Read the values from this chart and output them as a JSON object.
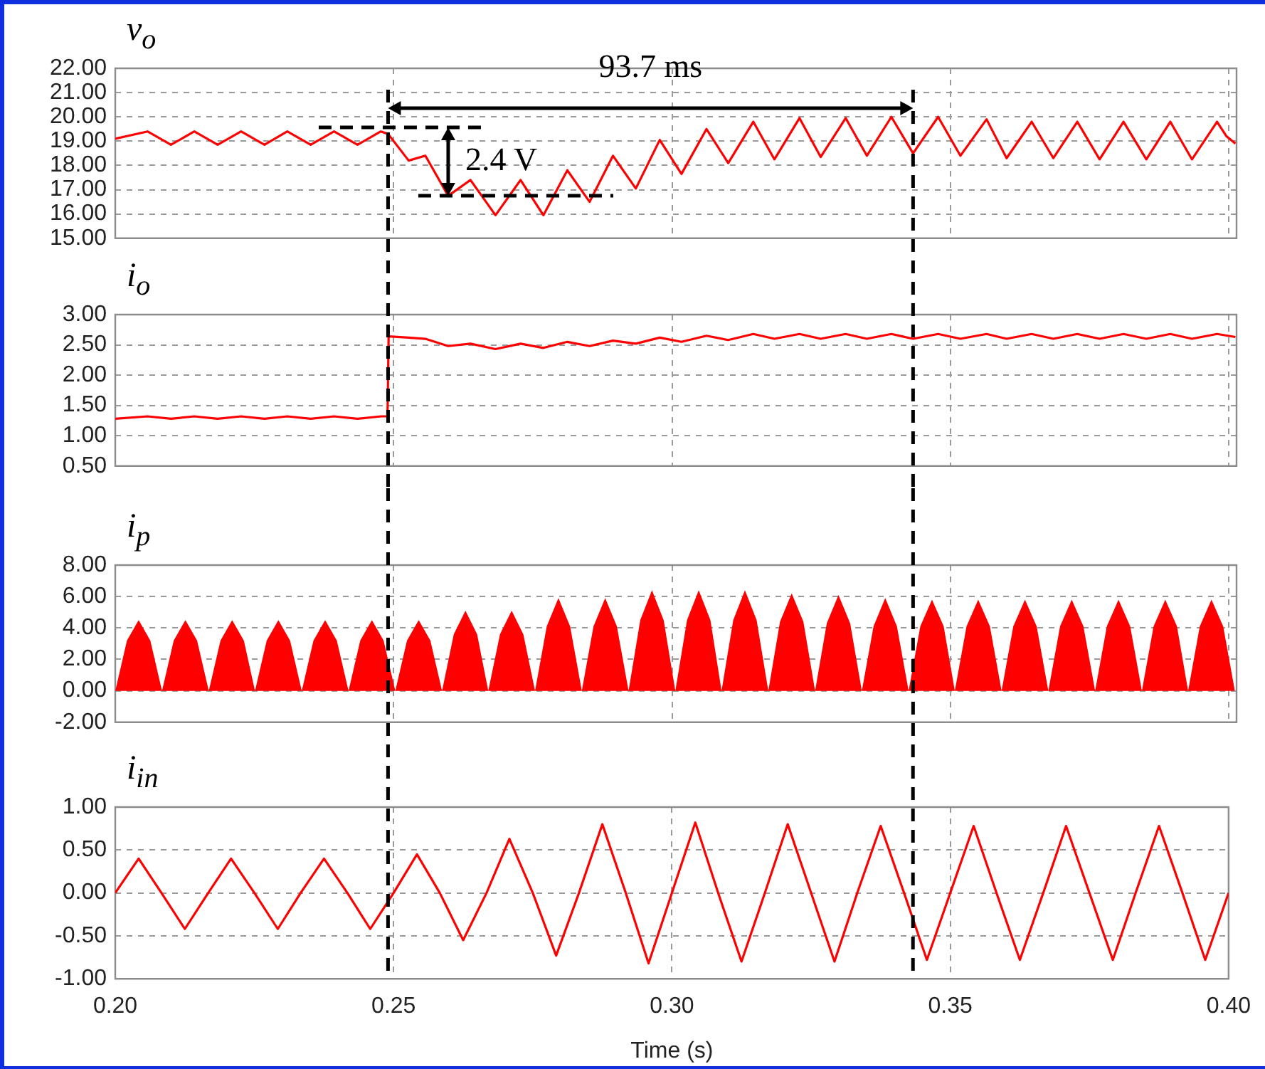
{
  "chart_data": [
    {
      "type": "line",
      "title": "v$_{o}$",
      "color": "#ff0000",
      "x": [
        0.2,
        0.2058,
        0.21,
        0.2142,
        0.2184,
        0.2226,
        0.2268,
        0.2309,
        0.2351,
        0.2393,
        0.2435,
        0.2477,
        0.249,
        0.2527,
        0.2557,
        0.2598,
        0.2638,
        0.2683,
        0.2728,
        0.2769,
        0.2812,
        0.2852,
        0.2894,
        0.2935,
        0.2978,
        0.3017,
        0.3062,
        0.3101,
        0.3146,
        0.3184,
        0.3229,
        0.3267,
        0.3312,
        0.335,
        0.3394,
        0.3433,
        0.3478,
        0.3518,
        0.3565,
        0.3601,
        0.3646,
        0.3685,
        0.3728,
        0.3768,
        0.3811,
        0.3852,
        0.3895,
        0.3934,
        0.3979,
        0.3996,
        0.4012
      ],
      "values": [
        19.1,
        19.4,
        18.85,
        19.4,
        18.85,
        19.4,
        18.85,
        19.4,
        18.85,
        19.4,
        18.85,
        19.4,
        19.3,
        18.2,
        18.4,
        16.75,
        17.4,
        15.95,
        17.4,
        15.95,
        17.8,
        16.5,
        18.4,
        17.05,
        19.05,
        17.65,
        19.5,
        18.1,
        19.8,
        18.25,
        19.95,
        18.35,
        19.95,
        18.4,
        20.0,
        18.5,
        20.0,
        18.4,
        19.9,
        18.3,
        19.8,
        18.3,
        19.8,
        18.25,
        19.8,
        18.25,
        19.8,
        18.25,
        19.8,
        19.2,
        18.9
      ],
      "xlim": [
        0.2,
        0.4014
      ],
      "xticks": [
        0.2,
        0.25,
        0.3,
        0.35,
        0.4
      ],
      "ylim": [
        15,
        22
      ],
      "yticks": [
        {
          "value": 15,
          "label": "15.00"
        },
        {
          "value": 16,
          "label": "16.00"
        },
        {
          "value": 17,
          "label": "17.00"
        },
        {
          "value": 18,
          "label": "18.00"
        },
        {
          "value": 19,
          "label": "19.00"
        },
        {
          "value": 20,
          "label": "20.00"
        },
        {
          "value": 21,
          "label": "21.00"
        },
        {
          "value": 22,
          "label": "22.00"
        }
      ],
      "grid": true,
      "tick_labels": "y",
      "ref_lines": [
        {
          "axis": "x",
          "value": 0.249,
          "color": "#000000",
          "line_style": "dashed"
        },
        {
          "axis": "x",
          "value": 0.3433,
          "color": "#000000",
          "line_style": "dashed"
        }
      ],
      "annotations": [
        "93.7 ms",
        {
          "text": "2.4 V",
          "x": 0.2598,
          "y": 16.75
        }
      ]
    },
    {
      "type": "line",
      "title": "i$_{o}$",
      "color": "#ff0000",
      "x": [
        0.2,
        0.2058,
        0.21,
        0.2142,
        0.2184,
        0.2226,
        0.2268,
        0.2309,
        0.2351,
        0.2393,
        0.2435,
        0.2477,
        0.2489,
        0.2491,
        0.2527,
        0.2557,
        0.2598,
        0.2638,
        0.2683,
        0.2728,
        0.2769,
        0.2812,
        0.2852,
        0.2894,
        0.2935,
        0.2978,
        0.3017,
        0.3062,
        0.3101,
        0.3146,
        0.3184,
        0.3229,
        0.3267,
        0.3312,
        0.335,
        0.3394,
        0.3433,
        0.3478,
        0.3518,
        0.3565,
        0.3601,
        0.3646,
        0.3685,
        0.3728,
        0.3768,
        0.3811,
        0.3852,
        0.3895,
        0.3934,
        0.3979,
        0.4012
      ],
      "values": [
        1.28,
        1.32,
        1.28,
        1.32,
        1.28,
        1.32,
        1.28,
        1.32,
        1.28,
        1.32,
        1.28,
        1.32,
        1.32,
        2.64,
        2.62,
        2.6,
        2.48,
        2.52,
        2.43,
        2.52,
        2.45,
        2.55,
        2.48,
        2.57,
        2.52,
        2.62,
        2.55,
        2.65,
        2.58,
        2.68,
        2.6,
        2.68,
        2.6,
        2.68,
        2.6,
        2.68,
        2.6,
        2.68,
        2.6,
        2.68,
        2.6,
        2.68,
        2.6,
        2.68,
        2.6,
        2.68,
        2.6,
        2.68,
        2.6,
        2.68,
        2.63
      ],
      "xlim": [
        0.2,
        0.4014
      ],
      "xticks": [
        0.2,
        0.25,
        0.3,
        0.35,
        0.4
      ],
      "ylim": [
        0.5,
        3
      ],
      "yticks": [
        {
          "value": 0.5,
          "label": "0.50"
        },
        {
          "value": 1,
          "label": "1.00"
        },
        {
          "value": 1.5,
          "label": "1.50"
        },
        {
          "value": 2,
          "label": "2.00"
        },
        {
          "value": 2.5,
          "label": "2.50"
        },
        {
          "value": 3,
          "label": "3.00"
        }
      ],
      "grid": true,
      "tick_labels": "y",
      "ref_lines": [
        {
          "axis": "x",
          "value": 0.249,
          "color": "#000000",
          "line_style": "dashed"
        },
        {
          "axis": "x",
          "value": 0.3433,
          "color": "#000000",
          "line_style": "dashed"
        }
      ]
    },
    {
      "type": "area",
      "title": "i$_{p}$",
      "color": "#ff0000",
      "x": [
        0.2,
        0.2021,
        0.2042,
        0.2063,
        0.2084,
        0.2105,
        0.2126,
        0.2147,
        0.2168,
        0.2189,
        0.221,
        0.2231,
        0.2251,
        0.2272,
        0.2293,
        0.2314,
        0.2335,
        0.2356,
        0.2377,
        0.2398,
        0.2419,
        0.244,
        0.2461,
        0.2482,
        0.2503,
        0.2524,
        0.2545,
        0.2566,
        0.2587,
        0.2608,
        0.2629,
        0.265,
        0.267,
        0.2691,
        0.2712,
        0.2733,
        0.2754,
        0.2775,
        0.2796,
        0.2817,
        0.2838,
        0.2859,
        0.288,
        0.2901,
        0.2922,
        0.2943,
        0.2964,
        0.2985,
        0.3006,
        0.3027,
        0.3048,
        0.3069,
        0.3089,
        0.311,
        0.3131,
        0.3152,
        0.3173,
        0.3194,
        0.3215,
        0.3236,
        0.3257,
        0.3278,
        0.3299,
        0.332,
        0.3341,
        0.3362,
        0.3383,
        0.3404,
        0.3425,
        0.3446,
        0.3467,
        0.3488,
        0.3508,
        0.3529,
        0.355,
        0.3571,
        0.3592,
        0.3613,
        0.3634,
        0.3655,
        0.3676,
        0.3697,
        0.3718,
        0.3739,
        0.376,
        0.3781,
        0.3802,
        0.3823,
        0.3844,
        0.3865,
        0.3886,
        0.3907,
        0.3927,
        0.3948,
        0.3969,
        0.399,
        0.4011
      ],
      "values": [
        0,
        3.2,
        4.5,
        3.2,
        0,
        3.2,
        4.5,
        3.2,
        0,
        3.2,
        4.5,
        3.2,
        0,
        3.2,
        4.5,
        3.2,
        0,
        3.2,
        4.5,
        3.2,
        0,
        3.2,
        4.5,
        3.2,
        0,
        3.2,
        4.5,
        3.2,
        0,
        3.6,
        5.1,
        3.6,
        0,
        3.6,
        5.1,
        3.6,
        0,
        4.1,
        5.9,
        4.1,
        0,
        4.1,
        5.9,
        4.1,
        0,
        4.5,
        6.4,
        4.5,
        0,
        4.5,
        6.4,
        4.5,
        0,
        4.5,
        6.4,
        4.5,
        0,
        4.4,
        6.2,
        4.4,
        0,
        4.3,
        6.1,
        4.3,
        0,
        4.1,
        5.9,
        4.1,
        0,
        4.1,
        5.8,
        4.1,
        0,
        4.1,
        5.8,
        4.1,
        0,
        4.1,
        5.8,
        4.1,
        0,
        4.1,
        5.8,
        4.1,
        0,
        4.1,
        5.8,
        4.1,
        0,
        4.1,
        5.8,
        4.1,
        0,
        4.1,
        5.8,
        4.1,
        0
      ],
      "xlim": [
        0.2,
        0.4014
      ],
      "xticks": [
        0.2,
        0.25,
        0.3,
        0.35,
        0.4
      ],
      "ylim": [
        -2,
        8
      ],
      "yticks": [
        {
          "value": -2,
          "label": "-2.00"
        },
        {
          "value": 0,
          "label": "0.00"
        },
        {
          "value": 2,
          "label": "2.00"
        },
        {
          "value": 4,
          "label": "4.00"
        },
        {
          "value": 6,
          "label": "6.00"
        },
        {
          "value": 8,
          "label": "8.00"
        }
      ],
      "grid": true,
      "tick_labels": "y",
      "ref_lines": [
        {
          "axis": "x",
          "value": 0.249,
          "color": "#000000",
          "line_style": "dashed"
        },
        {
          "axis": "x",
          "value": 0.3433,
          "color": "#000000",
          "line_style": "dashed"
        }
      ]
    },
    {
      "type": "line",
      "title": "i$_{in}$",
      "xlabel": "Time (s)",
      "color": "#ff0000",
      "x": [
        0.2,
        0.2042,
        0.2083,
        0.2125,
        0.2167,
        0.2208,
        0.225,
        0.2292,
        0.2333,
        0.2375,
        0.2417,
        0.2458,
        0.25,
        0.2542,
        0.2583,
        0.2625,
        0.2667,
        0.2708,
        0.275,
        0.2792,
        0.2833,
        0.2875,
        0.2917,
        0.2958,
        0.3,
        0.3042,
        0.3083,
        0.3125,
        0.3167,
        0.3208,
        0.325,
        0.3292,
        0.3333,
        0.3375,
        0.3417,
        0.3458,
        0.35,
        0.3542,
        0.3583,
        0.3625,
        0.3667,
        0.3708,
        0.375,
        0.3792,
        0.3833,
        0.3875,
        0.3917,
        0.3958,
        0.4
      ],
      "values": [
        0,
        0.4,
        0,
        -0.42,
        0,
        0.4,
        0,
        -0.42,
        0,
        0.4,
        0,
        -0.42,
        0,
        0.45,
        0,
        -0.55,
        0,
        0.63,
        0,
        -0.73,
        0,
        0.8,
        0,
        -0.82,
        0,
        0.82,
        0,
        -0.8,
        0,
        0.8,
        0,
        -0.8,
        0,
        0.78,
        0,
        -0.78,
        0,
        0.78,
        0,
        -0.78,
        0,
        0.78,
        0,
        -0.78,
        0,
        0.78,
        0,
        -0.78,
        0
      ],
      "xlim": [
        0.2,
        0.4
      ],
      "xticks": [
        {
          "value": 0.2,
          "label": "0.20"
        },
        {
          "value": 0.25,
          "label": "0.25"
        },
        {
          "value": 0.3,
          "label": "0.30"
        },
        {
          "value": 0.35,
          "label": "0.35"
        },
        {
          "value": 0.4,
          "label": "0.40"
        }
      ],
      "ylim": [
        -1,
        1
      ],
      "yticks": [
        {
          "value": -1,
          "label": "-1.00"
        },
        {
          "value": -0.5,
          "label": "-0.50"
        },
        {
          "value": 0,
          "label": "0.00"
        },
        {
          "value": 0.5,
          "label": "0.50"
        },
        {
          "value": 1,
          "label": "1.00"
        }
      ],
      "grid": true,
      "ref_lines": [
        {
          "axis": "x",
          "value": 0.249,
          "color": "#000000",
          "line_style": "dashed"
        },
        {
          "axis": "x",
          "value": 0.3433,
          "color": "#000000",
          "line_style": "dashed"
        }
      ]
    }
  ]
}
